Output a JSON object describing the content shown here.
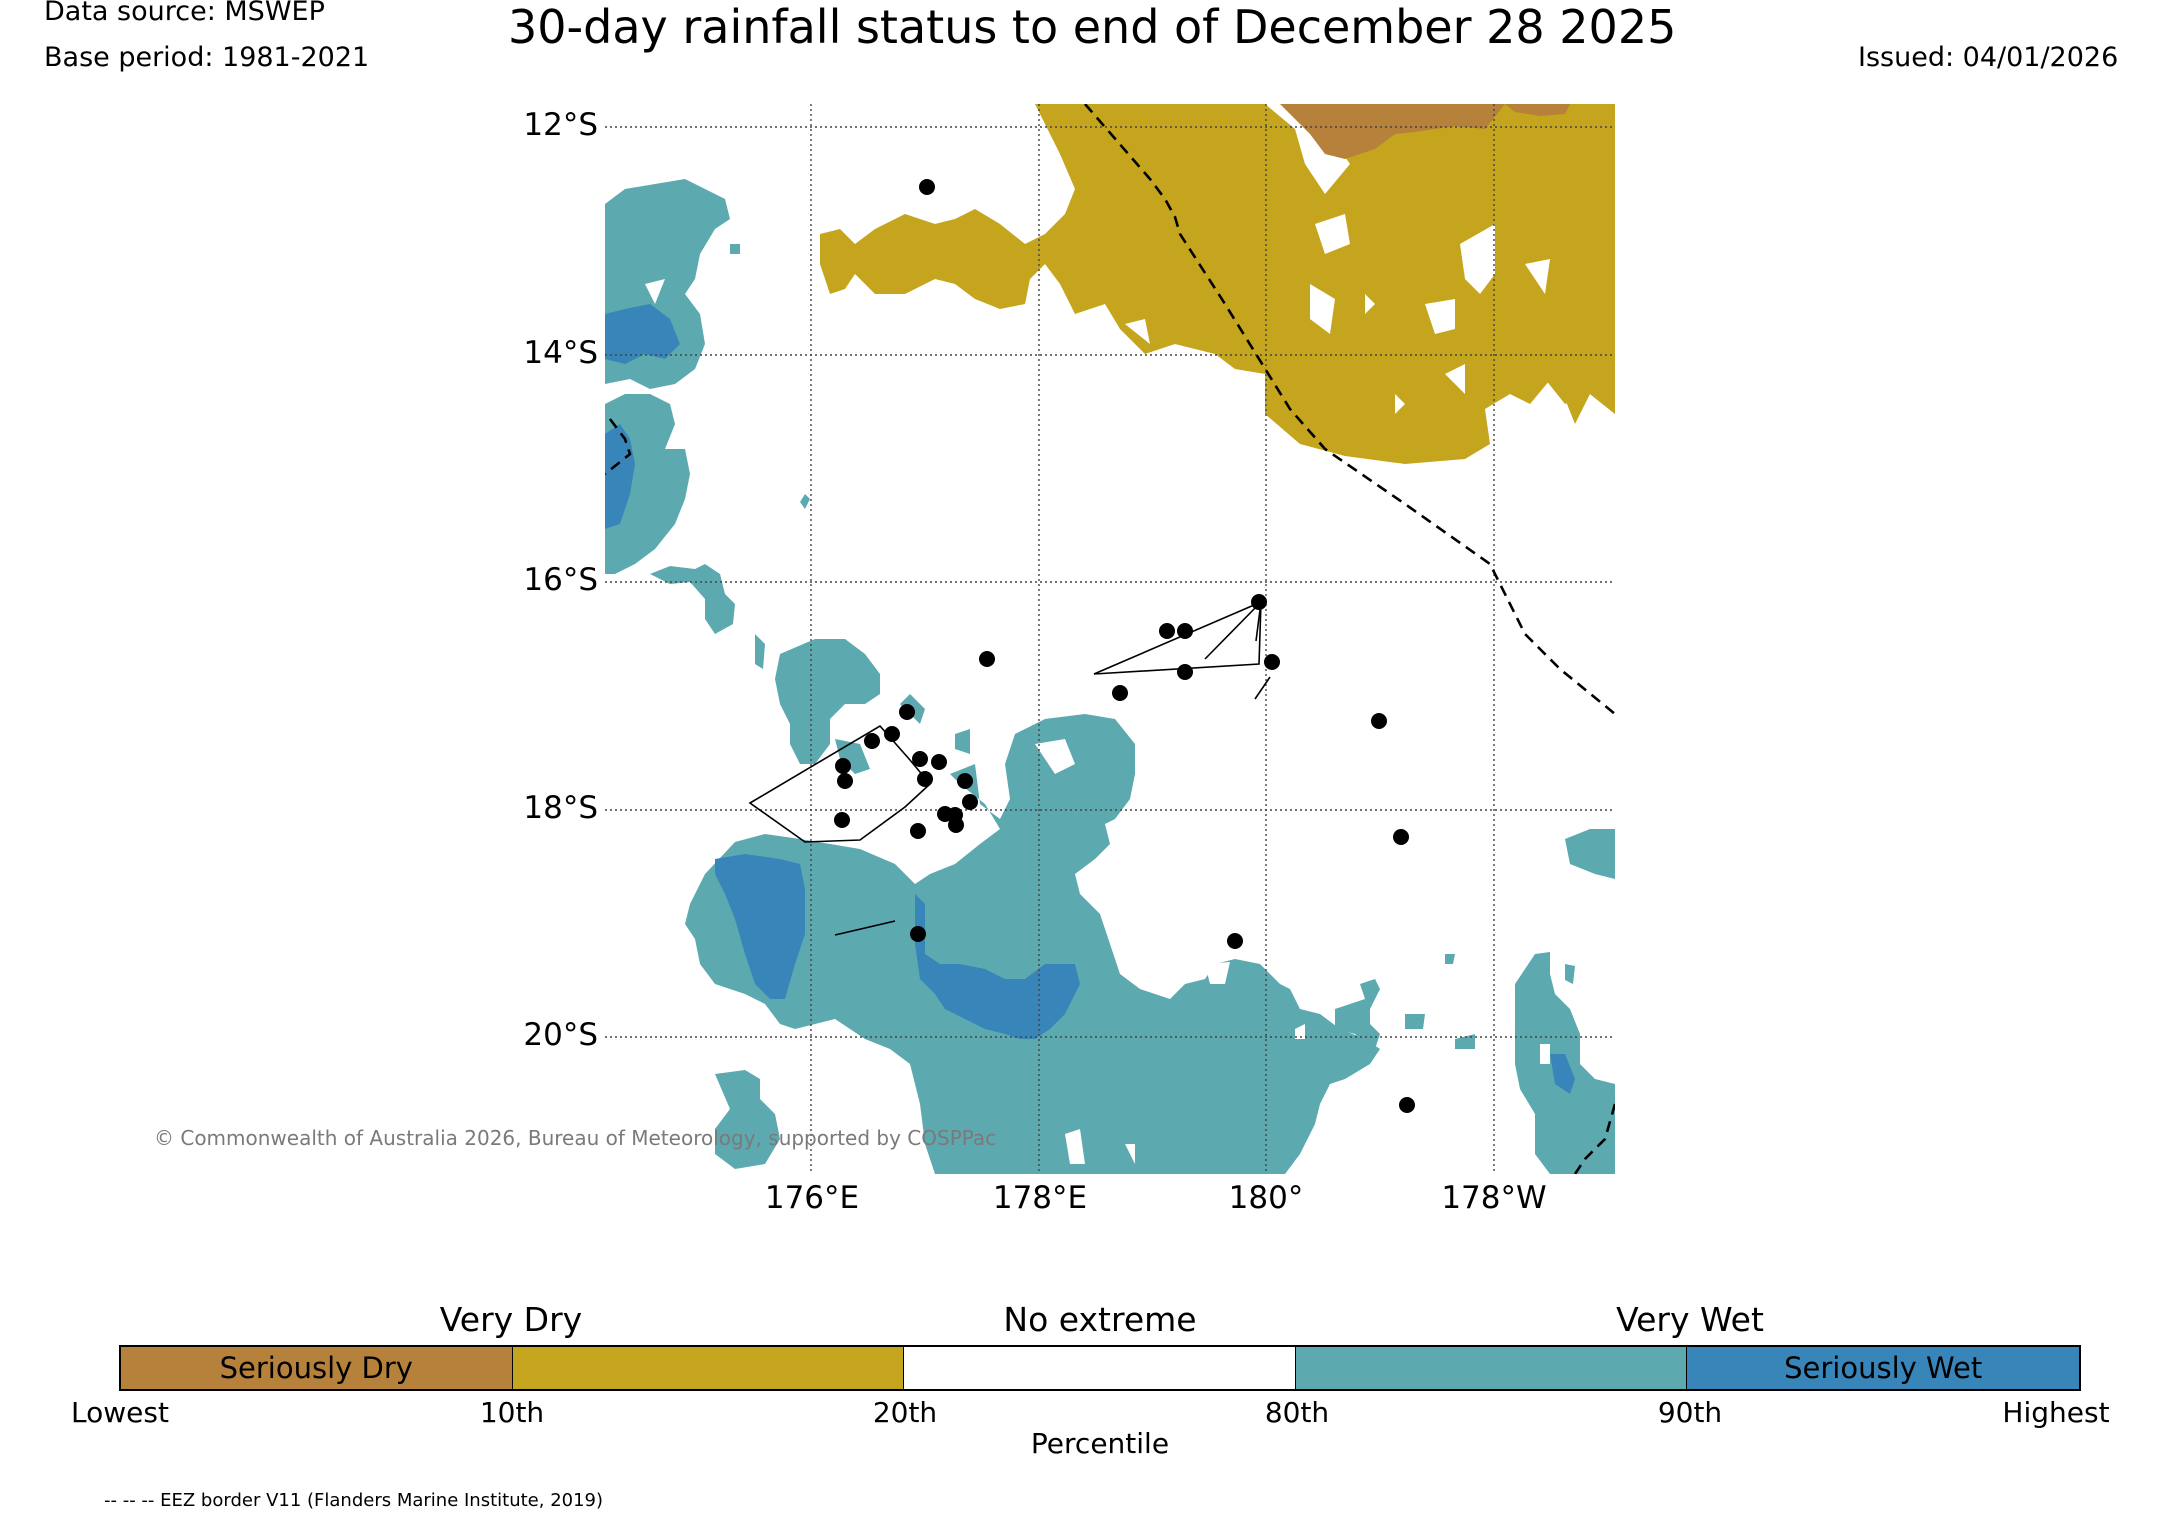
{
  "header": {
    "data_source": "Data source: MSWEP",
    "base_period": "Base period: 1981-2021",
    "title": "30-day rainfall status to end of December 28 2025",
    "issued": "Issued: 04/01/2026"
  },
  "map": {
    "lat_labels": [
      "12°S",
      "14°S",
      "16°S",
      "18°S",
      "20°S"
    ],
    "lon_labels": [
      "176°E",
      "178°E",
      "180°",
      "178°W"
    ],
    "copyright": "© Commonwealth of Australia 2026, Bureau of Meteorology, supported by COSPPac"
  },
  "colors": {
    "seriously_dry": "#b5813b",
    "very_dry": "#c4a51d",
    "no_extreme": "#ffffff",
    "very_wet": "#5ca9b0",
    "seriously_wet": "#3785b9"
  },
  "legend": {
    "categories": [
      "Very Dry",
      "No extreme",
      "Very Wet"
    ],
    "segments": [
      {
        "label": "Seriously Dry",
        "color": "#b5813b"
      },
      {
        "label": "",
        "color": "#c4a51d"
      },
      {
        "label": "",
        "color": "#ffffff"
      },
      {
        "label": "",
        "color": "#5ca9b0"
      },
      {
        "label": "Seriously Wet",
        "color": "#3785b9"
      }
    ],
    "ticks": [
      "Lowest",
      "10th",
      "20th",
      "80th",
      "90th",
      "Highest"
    ],
    "axis_label": "Percentile"
  },
  "footnote": "-- -- -- EEZ border V11 (Flanders Marine Institute, 2019)"
}
